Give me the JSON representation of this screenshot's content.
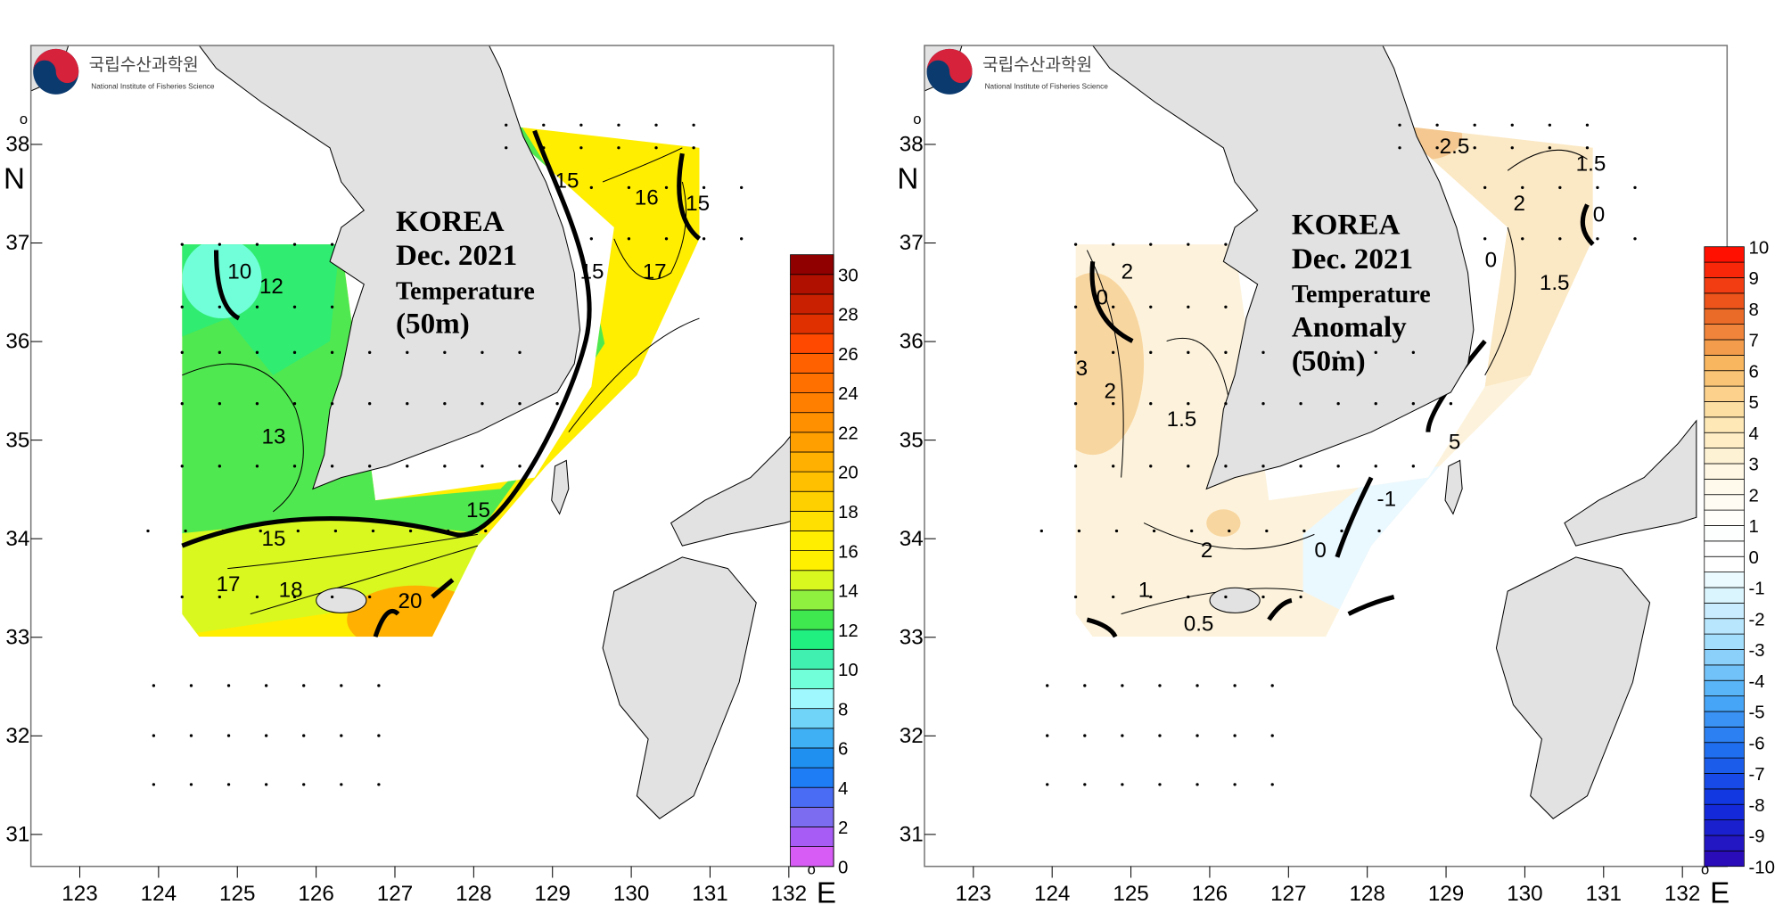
{
  "logo": {
    "korean": "국립수산과학원",
    "english": "National Institute of Fisheries Science"
  },
  "axes": {
    "lon_ticks": [
      "123",
      "124",
      "125",
      "126",
      "127",
      "128",
      "129",
      "130",
      "131",
      "132"
    ],
    "lat_ticks": [
      "38",
      "37",
      "36",
      "35",
      "34",
      "33",
      "32",
      "31"
    ],
    "lon_unit": "E",
    "lat_unit": "N",
    "degree": "o"
  },
  "maps": [
    {
      "title_lines": [
        "KOREA",
        "Dec. 2021",
        "Temperature",
        "(50m)"
      ],
      "colorbar": {
        "labels": [
          "0",
          "2",
          "4",
          "6",
          "8",
          "10",
          "12",
          "14",
          "16",
          "18",
          "20",
          "22",
          "24",
          "26",
          "28",
          "30"
        ],
        "min": 0,
        "max": 31,
        "colors": [
          "#d65cf5",
          "#a65cf5",
          "#7b6cf0",
          "#4a6cf5",
          "#1e7cf5",
          "#2090f0",
          "#40b0f5",
          "#70d4f8",
          "#a0f8ff",
          "#70ffd8",
          "#40f0b0",
          "#20f080",
          "#40e850",
          "#90f040",
          "#d8f820",
          "#fff000",
          "#ffee00",
          "#ffe000",
          "#ffd000",
          "#ffc000",
          "#ffb000",
          "#ffa000",
          "#ff9000",
          "#ff8000",
          "#ff7000",
          "#ff6000",
          "#ff4800",
          "#e03000",
          "#c82000",
          "#b01000",
          "#900000"
        ]
      },
      "contour_labels": [
        "15",
        "16",
        "15",
        "17",
        "15",
        "10",
        "12",
        "13",
        "15",
        "15",
        "17",
        "18",
        "20"
      ]
    },
    {
      "title_lines": [
        "KOREA",
        "Dec. 2021",
        "Temperature",
        "Anomaly",
        "(50m)"
      ],
      "colorbar": {
        "labels": [
          "-10",
          "-9",
          "-8",
          "-7",
          "-6",
          "-5",
          "-4",
          "-3",
          "-2",
          "-1",
          "0",
          "1",
          "2",
          "3",
          "4",
          "5",
          "6",
          "7",
          "8",
          "9",
          "10"
        ],
        "min": -10,
        "max": 10,
        "color_anchors": [
          "#2a0cb8",
          "#1030e0",
          "#2070f0",
          "#50b0f8",
          "#a8e0fc",
          "#e8faff",
          "#ffffff",
          "#fff8e6",
          "#fde6b0",
          "#f8b860",
          "#e86020",
          "#ff1000"
        ]
      },
      "contour_labels": [
        "2.5",
        "1.5",
        "2",
        "0",
        "0",
        "1.5",
        "2",
        "0",
        "3",
        "2",
        "1.5",
        "-1",
        "2",
        "0",
        "1",
        "0.5",
        "5"
      ]
    }
  ]
}
